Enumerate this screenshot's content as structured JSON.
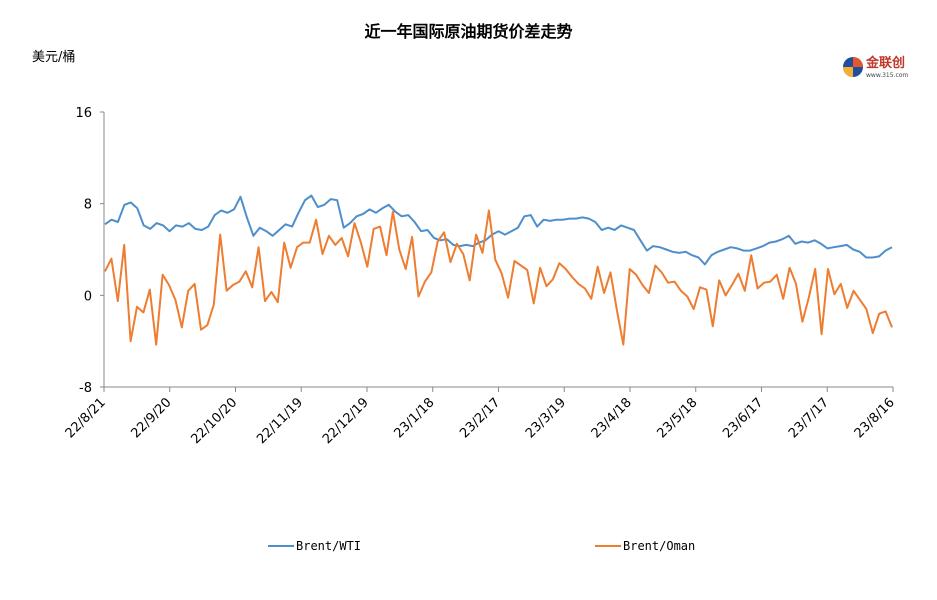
{
  "chart_data": {
    "type": "line",
    "title": "近一年国际原油期货价差走势",
    "ylabel": "美元/桶",
    "ylim": [
      -8,
      16
    ],
    "yticks": [
      -8,
      0,
      8,
      16
    ],
    "ytick_labels": [
      "-8",
      "0",
      "8",
      "16"
    ],
    "xtick_labels": [
      "22/8/21",
      "22/9/20",
      "22/10/20",
      "22/11/19",
      "22/12/19",
      "23/1/18",
      "23/2/17",
      "23/3/19",
      "23/4/18",
      "23/5/18",
      "23/6/17",
      "23/7/17",
      "23/8/16"
    ],
    "grid": false,
    "legend": "bottom",
    "series": [
      {
        "name": "Brent/WTI",
        "color": "#4e8fcb",
        "values": [
          6.2,
          6.6,
          6.4,
          7.9,
          8.1,
          7.6,
          6.1,
          5.8,
          6.3,
          6.1,
          5.6,
          6.1,
          6.0,
          6.3,
          5.8,
          5.7,
          6.0,
          7.0,
          7.4,
          7.2,
          7.5,
          8.6,
          6.8,
          5.2,
          5.9,
          5.6,
          5.2,
          5.7,
          6.2,
          6.0,
          7.2,
          8.3,
          8.7,
          7.7,
          7.9,
          8.4,
          8.3,
          5.9,
          6.3,
          6.9,
          7.1,
          7.5,
          7.2,
          7.6,
          7.9,
          7.3,
          6.9,
          7.0,
          6.4,
          5.6,
          5.7,
          5.0,
          4.8,
          4.9,
          4.4,
          4.3,
          4.4,
          4.3,
          4.6,
          4.8,
          5.3,
          5.6,
          5.3,
          5.6,
          5.9,
          6.9,
          7.0,
          6.0,
          6.6,
          6.5,
          6.6,
          6.6,
          6.7,
          6.7,
          6.8,
          6.7,
          6.4,
          5.7,
          5.9,
          5.7,
          6.1,
          5.9,
          5.7,
          4.8,
          3.9,
          4.3,
          4.2,
          4.0,
          3.8,
          3.7,
          3.8,
          3.5,
          3.3,
          2.7,
          3.5,
          3.8,
          4.0,
          4.2,
          4.1,
          3.9,
          3.9,
          4.1,
          4.3,
          4.6,
          4.7,
          4.9,
          5.2,
          4.5,
          4.7,
          4.6,
          4.8,
          4.5,
          4.1,
          4.2,
          4.3,
          4.4,
          4.0,
          3.8,
          3.3,
          3.3,
          3.4,
          3.9,
          4.2
        ]
      },
      {
        "name": "Brent/Oman",
        "color": "#ed7d31",
        "values": [
          2.1,
          3.2,
          -0.5,
          4.4,
          -4.0,
          -1.0,
          -1.5,
          0.5,
          -4.3,
          1.8,
          0.9,
          -0.4,
          -2.8,
          0.4,
          1.0,
          -3.0,
          -2.6,
          -0.8,
          5.3,
          0.4,
          0.9,
          1.2,
          2.1,
          0.7,
          4.2,
          -0.5,
          0.3,
          -0.6,
          4.6,
          2.4,
          4.2,
          4.6,
          4.6,
          6.6,
          3.6,
          5.2,
          4.4,
          5.0,
          3.4,
          6.3,
          4.6,
          2.5,
          5.8,
          6.0,
          3.5,
          7.3,
          4.0,
          2.3,
          5.1,
          -0.1,
          1.2,
          2.0,
          4.7,
          5.5,
          2.9,
          4.5,
          3.6,
          1.3,
          5.3,
          3.7,
          7.4,
          3.1,
          1.9,
          -0.2,
          3.0,
          2.6,
          2.2,
          -0.7,
          2.4,
          0.8,
          1.4,
          2.8,
          2.3,
          1.6,
          1.0,
          0.6,
          -0.3,
          2.5,
          0.2,
          2.0,
          -1.3,
          -4.3,
          2.3,
          1.8,
          0.9,
          0.2,
          2.6,
          2.0,
          1.1,
          1.2,
          0.4,
          -0.1,
          -1.2,
          0.7,
          0.5,
          -2.7,
          1.3,
          0.0,
          0.9,
          1.9,
          0.4,
          3.5,
          0.6,
          1.1,
          1.2,
          1.8,
          -0.3,
          2.4,
          1.0,
          -2.3,
          -0.2,
          2.3,
          -3.4,
          2.3,
          0.1,
          1.0,
          -1.1,
          0.4,
          -0.4,
          -1.2,
          -3.3,
          -1.6,
          -1.4,
          -2.8
        ]
      }
    ]
  },
  "logo": {
    "text": "金联创",
    "sub": "www.315.com"
  }
}
